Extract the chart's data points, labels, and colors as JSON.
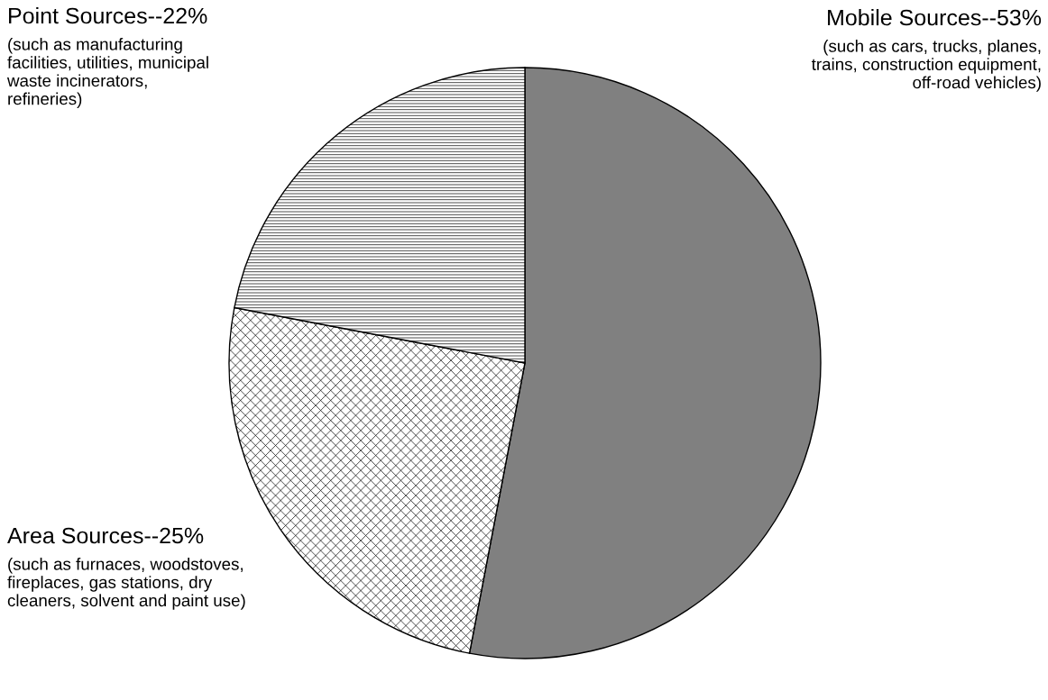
{
  "chart_data": {
    "type": "pie",
    "categories": [
      "Mobile Sources--53%",
      "Area Sources--25%",
      "Point Sources--22%"
    ],
    "values": [
      53,
      25,
      22
    ],
    "colors": [
      "#808080",
      "#ffffff",
      "#ffffff"
    ],
    "annotations": [
      "(such as cars, trucks, planes,\ntrains, construction equipment,\noff-road vehicles)",
      "(such as furnaces, woodstoves,\nfireplaces, gas stations, dry\ncleaners, solvent and paint use)",
      "(such as manufacturing\nfacilities, utilities, municipal\nwaste incinerators,\nrefineries)"
    ]
  }
}
